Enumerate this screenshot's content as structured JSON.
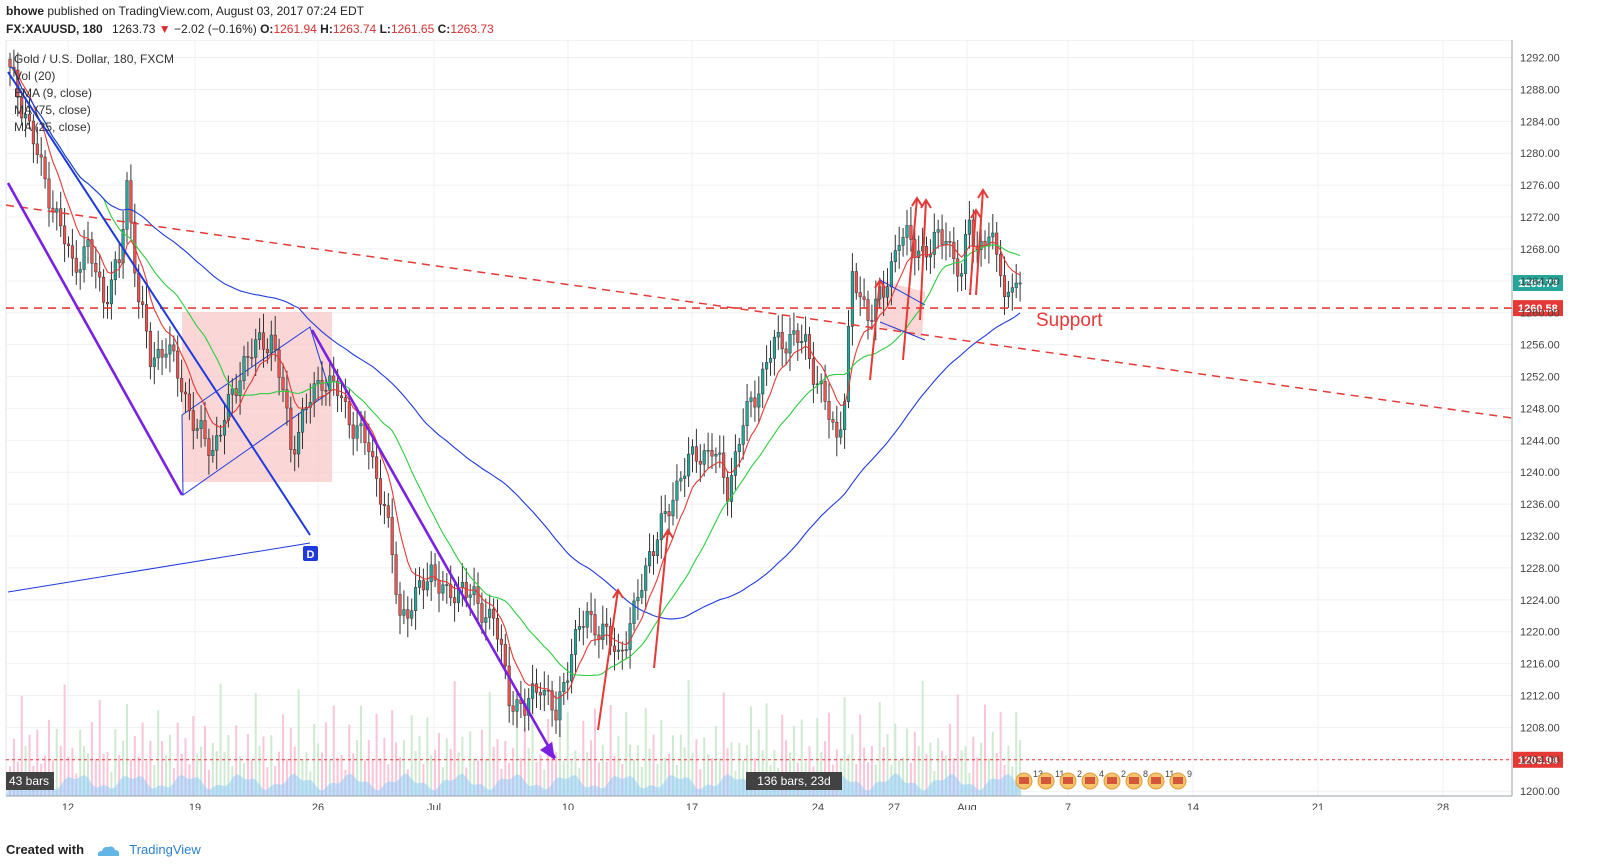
{
  "header": {
    "publisher": "bhowe",
    "published_text": "published on TradingView.com, August 03, 2017 07:24 EDT",
    "symbol": "FX:XAUUSD, 180",
    "last": "1263.73",
    "change": "−2.02 (−0.16%)",
    "o_label": "O:",
    "o": "1261.94",
    "h_label": "H:",
    "h": "1263.74",
    "l_label": "L:",
    "l": "1261.65",
    "c_label": "C:",
    "c": "1263.73"
  },
  "legend": {
    "title": "Gold / U.S. Dollar, 180, FXCM",
    "vol": "Vol (20)",
    "ema": "EMA (9, close)",
    "ma1": "MA (75, close)",
    "ma2": "MA (25, close)"
  },
  "annotations": {
    "support": "Support",
    "marker": "D",
    "bars_left": "43 bars",
    "bars_range": "136 bars, 23d",
    "event_counts": [
      "13",
      "11",
      "2",
      "4",
      "2",
      "8",
      "11",
      "9"
    ]
  },
  "footer": {
    "created_with": "Created with",
    "brand": "TradingView"
  },
  "colors": {
    "up": "#26a69a",
    "down": "#ef5350",
    "ema": "#e53935",
    "ma25": "#2ecc40",
    "ma75": "#1e3adb",
    "support": "#e53935",
    "channel": "#7b1fe0"
  },
  "chart_data": {
    "type": "candlestick",
    "yticks": [
      1200.0,
      1204.0,
      1208.0,
      1212.0,
      1216.0,
      1220.0,
      1224.0,
      1228.0,
      1232.0,
      1236.0,
      1240.0,
      1244.0,
      1248.0,
      1252.0,
      1256.0,
      1260.0,
      1264.0,
      1268.0,
      1272.0,
      1276.0,
      1280.0,
      1284.0,
      1288.0,
      1292.0
    ],
    "ylim": [
      1199.4,
      1294.2
    ],
    "xticks": [
      "12",
      "19",
      "26",
      "Jul",
      "10",
      "17",
      "24",
      "27",
      "Aug",
      "7",
      "14",
      "21",
      "28"
    ],
    "price_labels": [
      {
        "value": 1263.73,
        "text": "1263.73",
        "color": "#26a69a"
      },
      {
        "value": 1260.58,
        "text": "1260.58",
        "color": "#e53935"
      },
      {
        "value": 1203.94,
        "text": "1203.94",
        "color": "#e53935"
      }
    ],
    "close_path": [
      [
        0,
        1290
      ],
      [
        4,
        1285
      ],
      [
        8,
        1278
      ],
      [
        12,
        1272
      ],
      [
        16,
        1266
      ],
      [
        20,
        1268
      ],
      [
        24,
        1262
      ],
      [
        28,
        1266
      ],
      [
        30,
        1276
      ],
      [
        33,
        1262
      ],
      [
        36,
        1254
      ],
      [
        40,
        1256
      ],
      [
        44,
        1251
      ],
      [
        48,
        1245
      ],
      [
        52,
        1243
      ],
      [
        56,
        1248
      ],
      [
        60,
        1254
      ],
      [
        64,
        1256
      ],
      [
        67,
        1257
      ],
      [
        70,
        1250
      ],
      [
        72,
        1243
      ],
      [
        76,
        1248
      ],
      [
        80,
        1252
      ],
      [
        84,
        1250
      ],
      [
        88,
        1246
      ],
      [
        92,
        1243
      ],
      [
        96,
        1236
      ],
      [
        100,
        1222
      ],
      [
        104,
        1224
      ],
      [
        108,
        1228
      ],
      [
        112,
        1224
      ],
      [
        116,
        1226
      ],
      [
        120,
        1223
      ],
      [
        124,
        1222
      ],
      [
        128,
        1212
      ],
      [
        132,
        1210
      ],
      [
        136,
        1214
      ],
      [
        140,
        1209
      ],
      [
        144,
        1218
      ],
      [
        148,
        1222
      ],
      [
        152,
        1220
      ],
      [
        156,
        1217
      ],
      [
        160,
        1222
      ],
      [
        164,
        1230
      ],
      [
        168,
        1234
      ],
      [
        172,
        1240
      ],
      [
        176,
        1242
      ],
      [
        180,
        1243
      ],
      [
        184,
        1238
      ],
      [
        188,
        1246
      ],
      [
        192,
        1251
      ],
      [
        196,
        1256
      ],
      [
        200,
        1257
      ],
      [
        204,
        1256
      ],
      [
        208,
        1250
      ],
      [
        212,
        1244
      ],
      [
        214,
        1250
      ],
      [
        216,
        1264
      ],
      [
        220,
        1260
      ],
      [
        224,
        1262
      ],
      [
        228,
        1270
      ],
      [
        232,
        1268
      ],
      [
        236,
        1268
      ],
      [
        240,
        1270
      ],
      [
        244,
        1264
      ],
      [
        246,
        1272
      ],
      [
        248,
        1268
      ],
      [
        252,
        1270
      ],
      [
        255,
        1262
      ],
      [
        258,
        1263.73
      ]
    ],
    "volume_pattern": [
      0.3,
      0.55,
      0.25,
      0.8,
      0.35,
      0.45,
      0.2,
      0.6,
      0.3,
      0.4,
      0.7,
      0.25,
      0.5,
      0.35,
      0.9,
      0.3,
      0.45,
      0.2,
      0.65,
      0.4
    ],
    "series": [
      {
        "name": "EMA (9, close)",
        "role": "ema",
        "color": "#e53935"
      },
      {
        "name": "MA (25, close)",
        "role": "ma25",
        "color": "#2ecc40"
      },
      {
        "name": "MA (75, close)",
        "role": "ma75",
        "color": "#1e3adb"
      }
    ],
    "support_level": 1260.58,
    "low_level": 1203.94,
    "grid": true
  }
}
